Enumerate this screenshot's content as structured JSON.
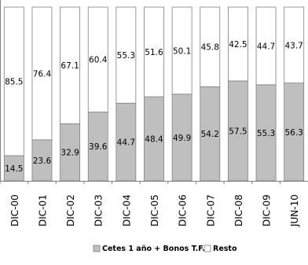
{
  "chart_data": {
    "type": "bar",
    "stacked": true,
    "normalized": true,
    "categories": [
      "DIC-00",
      "DIC-01",
      "DIC-02",
      "DIC-03",
      "DIC-04",
      "DIC-05",
      "DIC-06",
      "DIC-07",
      "DIC-08",
      "DIC-09",
      "JUN-10"
    ],
    "series": [
      {
        "name": "Cetes 1 año + Bonos T.F.",
        "values": [
          14.5,
          23.6,
          32.9,
          39.6,
          44.7,
          48.4,
          49.9,
          54.2,
          57.5,
          55.3,
          56.3
        ],
        "labels": [
          "14.5",
          "23.6",
          "32.9",
          "39.6",
          "44.7",
          "48.4",
          "49.9",
          "54.2",
          "57.5",
          "55.3",
          "56.3"
        ],
        "color": "#bfbfbf"
      },
      {
        "name": "Resto",
        "values": [
          85.5,
          76.4,
          67.1,
          60.4,
          55.3,
          51.6,
          50.1,
          45.8,
          42.5,
          44.7,
          43.7
        ],
        "labels": [
          "85.5",
          "76.4",
          "67.1",
          "60.4",
          "55.3",
          "51.6",
          "50.1",
          "45.8",
          "42.5",
          "44.7",
          "43.7"
        ],
        "color": "#ffffff"
      }
    ],
    "ylim": [
      0,
      100
    ],
    "grid": false,
    "legend_position": "bottom",
    "border_color": "#808080"
  }
}
